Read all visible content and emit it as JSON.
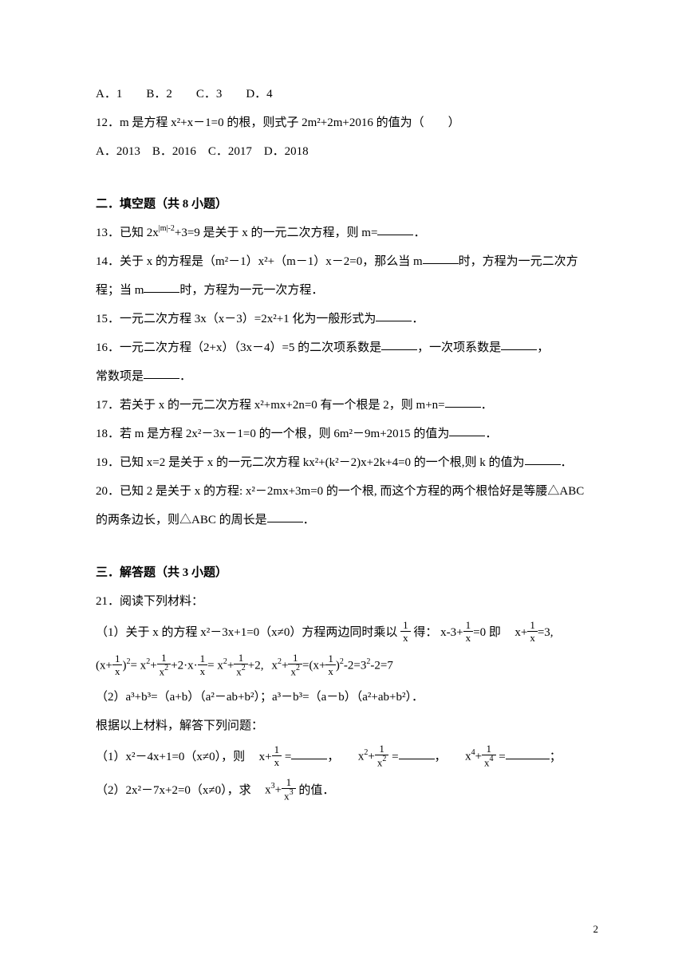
{
  "q11_options": "A．1　　B．2　　C．3　　D．4",
  "q12_text": "12．m 是方程 x²+x－1=0 的根，则式子 2m²+2m+2016 的值为（　　）",
  "q12_options": "A．2013　B．2016　C．2017　D．2018",
  "section2": "二．填空题（共 8 小题）",
  "q13_a": "13．已知 2x",
  "q13_sup": "|m|-2",
  "q13_b": "+3=9 是关于 x 的一元二次方程，则 m=",
  "q13_c": "．",
  "q14_a": "14．关于 x 的方程是（m²－1）x²+（m－1）x－2=0，那么当 m",
  "q14_b": "时，方程为一元二次方",
  "q14_c": "程；当 m",
  "q14_d": "时，方程为一元一次方程．",
  "q15_a": "15．一元二次方程 3x（x－3）=2x²+1 化为一般形式为",
  "q15_b": "．",
  "q16_a": "16．一元二次方程（2+x）（3x－4）=5 的二次项系数是",
  "q16_b": "，一次项系数是",
  "q16_c": "，",
  "q16_d": "常数项是",
  "q16_e": "．",
  "q17_a": "17．若关于 x 的一元二次方程 x²+mx+2n=0 有一个根是 2，则 m+n=",
  "q17_b": "．",
  "q18_a": "18．若 m 是方程 2x²－3x－1=0 的一个根，则 6m²－9m+2015 的值为",
  "q18_b": "．",
  "q19_a": "19．已知 x=2 是关于 x 的一元二次方程 kx²+(k²－2)x+2k+4=0 的一个根,则 k 的值为",
  "q19_b": "．",
  "q20_a": "20．已知 2 是关于 x 的方程: x²－2mx+3m=0 的一个根, 而这个方程的两个根恰好是等腰△ABC",
  "q20_b": "的两条边长，则△ABC 的周长是",
  "q20_c": "．",
  "section3": "三．解答题（共 3 小题）",
  "q21": "21．阅读下列材料：",
  "q21_1a": "（1）关于 x 的方程 x²－3x+1=0（x≠0）方程两边同时乘以",
  "q21_1b": "得：",
  "q21_1c": "即",
  "q21_2_text": "（2）a³+b³=（a+b）（a²－ab+b²）；a³－b³=（a－b）（a²+ab+b²）．",
  "q21_root": "根据以上材料，解答下列问题：",
  "q21_p1a": "（1）x²－4x+1=0（x≠0），则",
  "q21_eq": " =",
  "q21_comma": "，",
  "q21_semicolon": "；",
  "q21_p2a": "（2）2x²－7x+2=0（x≠0），求",
  "q21_p2b": "的值．",
  "frac": {
    "one": "1",
    "x": "x",
    "x2": "x",
    "x3": "x",
    "x4": "x"
  },
  "page": "2"
}
